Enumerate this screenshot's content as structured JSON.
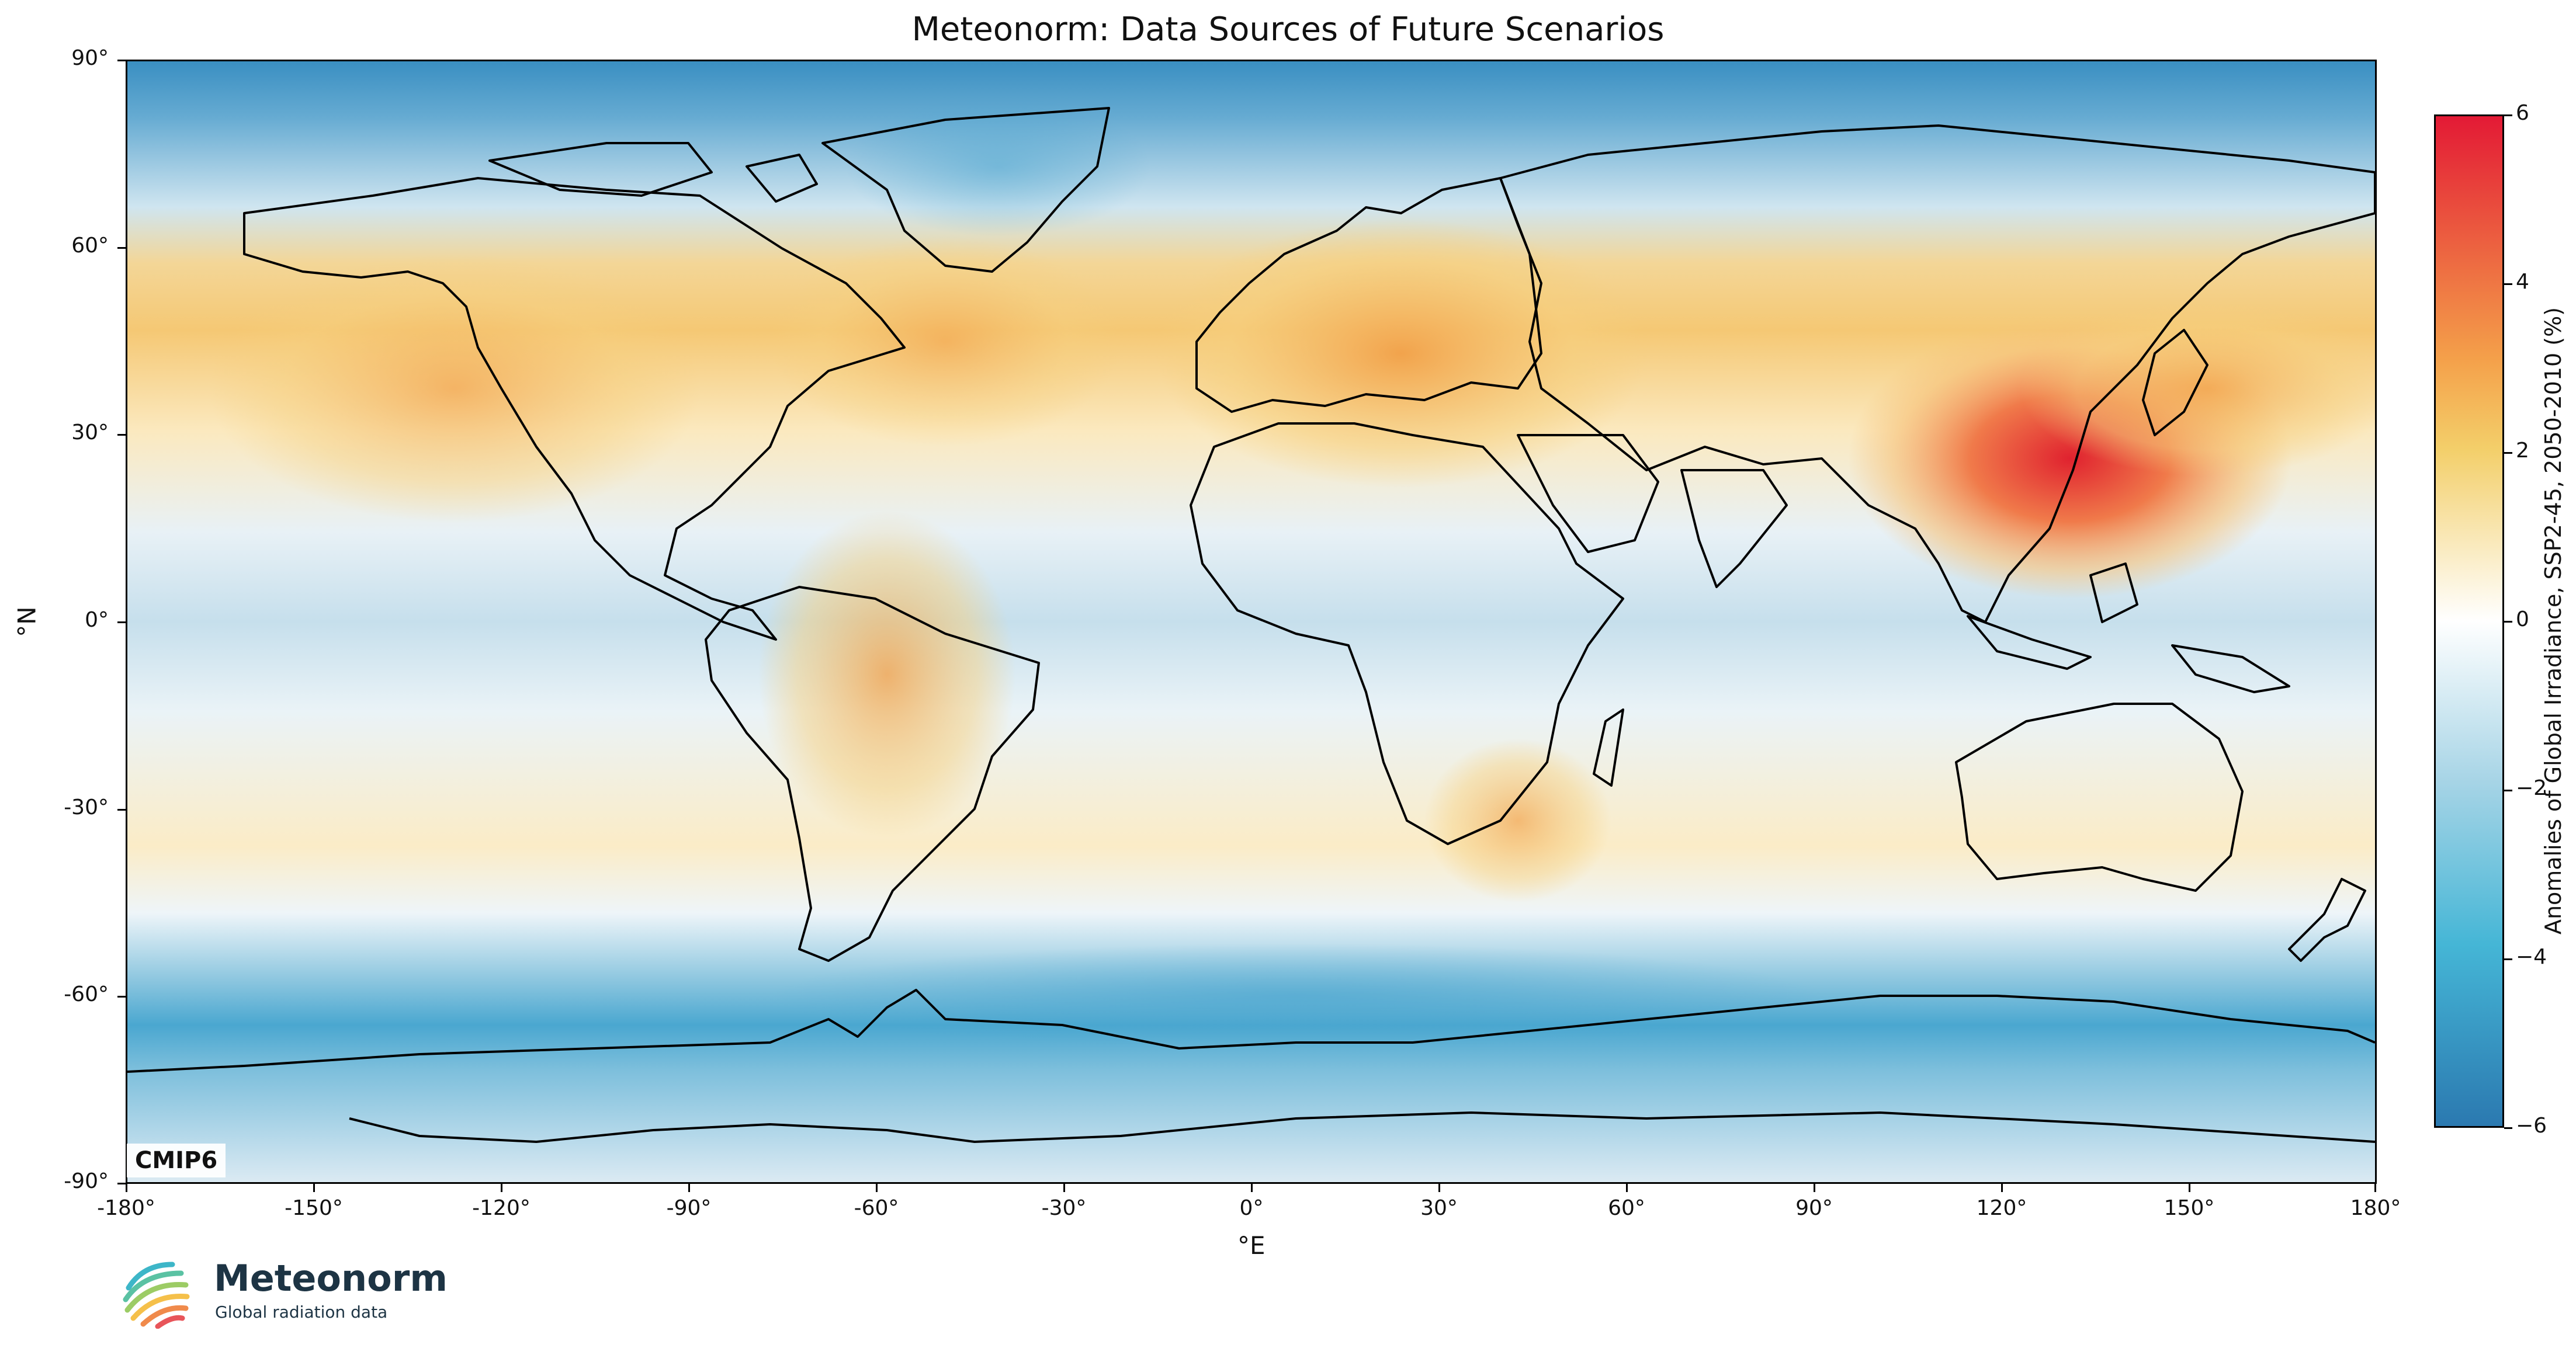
{
  "title": "Meteonorm: Data Sources of Future Scenarios",
  "x_axis": {
    "label": "°E",
    "ticks": [
      "-180°",
      "-150°",
      "-120°",
      "-90°",
      "-60°",
      "-30°",
      "0°",
      "30°",
      "60°",
      "90°",
      "120°",
      "150°",
      "180°"
    ]
  },
  "y_axis": {
    "label": "°N",
    "ticks": [
      "90°",
      "60°",
      "30°",
      "0°",
      "-30°",
      "-60°",
      "-90°"
    ]
  },
  "map": {
    "tag": "CMIP6",
    "variable": "Anomalies of Global Irradiance, SSP2-45, 2050-2010 (%)",
    "scenario": "SSP2-45",
    "coastline_color": "#000000"
  },
  "colorbar": {
    "title": "Anomalies of Global Irradiance, SSP2-45, 2050-2010 (%)",
    "ticks": [
      "6",
      "4",
      "2",
      "0",
      "−2",
      "−4",
      "−6"
    ],
    "range": [
      -6,
      6
    ],
    "colors": {
      "max": "#e31a35",
      "mid": "#ffffff",
      "min": "#2b79b0"
    }
  },
  "brand": {
    "name": "Meteonorm",
    "tagline": "Global radiation data"
  }
}
